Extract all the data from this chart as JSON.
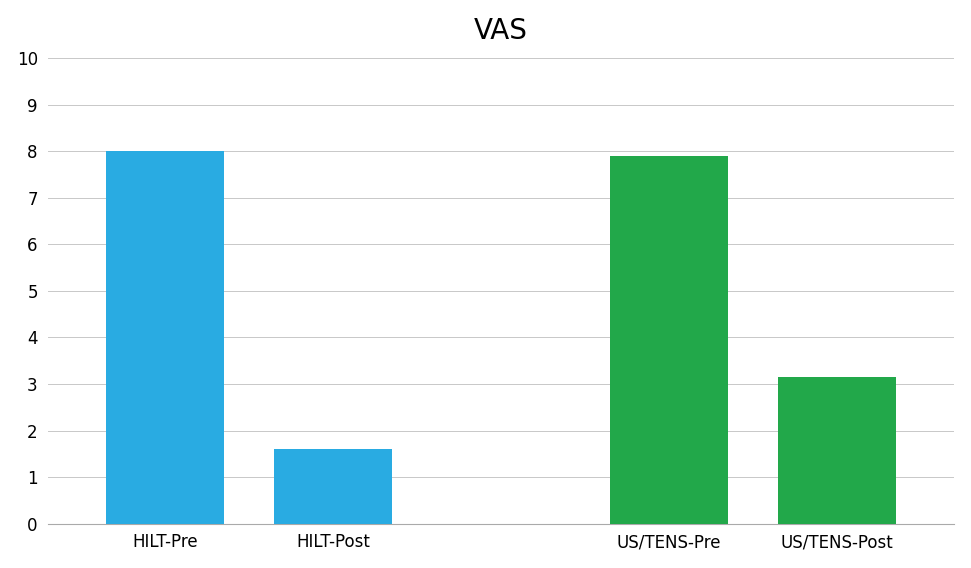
{
  "title": "VAS",
  "categories": [
    "HILT-Pre",
    "HILT-Post",
    "US/TENS-Pre",
    "US/TENS-Post"
  ],
  "values": [
    8.0,
    1.6,
    7.9,
    3.15
  ],
  "bar_colors": [
    "#29ABE2",
    "#29ABE2",
    "#22A84A",
    "#22A84A"
  ],
  "x_positions": [
    0.5,
    1.5,
    3.5,
    4.5
  ],
  "ylim": [
    0,
    10
  ],
  "yticks": [
    0,
    1,
    2,
    3,
    4,
    5,
    6,
    7,
    8,
    9,
    10
  ],
  "title_fontsize": 20,
  "tick_fontsize": 12,
  "background_color": "#FFFFFF",
  "bar_width": 0.7,
  "grid_color": "#C8C8C8",
  "spine_color": "#AAAAAA",
  "title_fontweight": "normal"
}
